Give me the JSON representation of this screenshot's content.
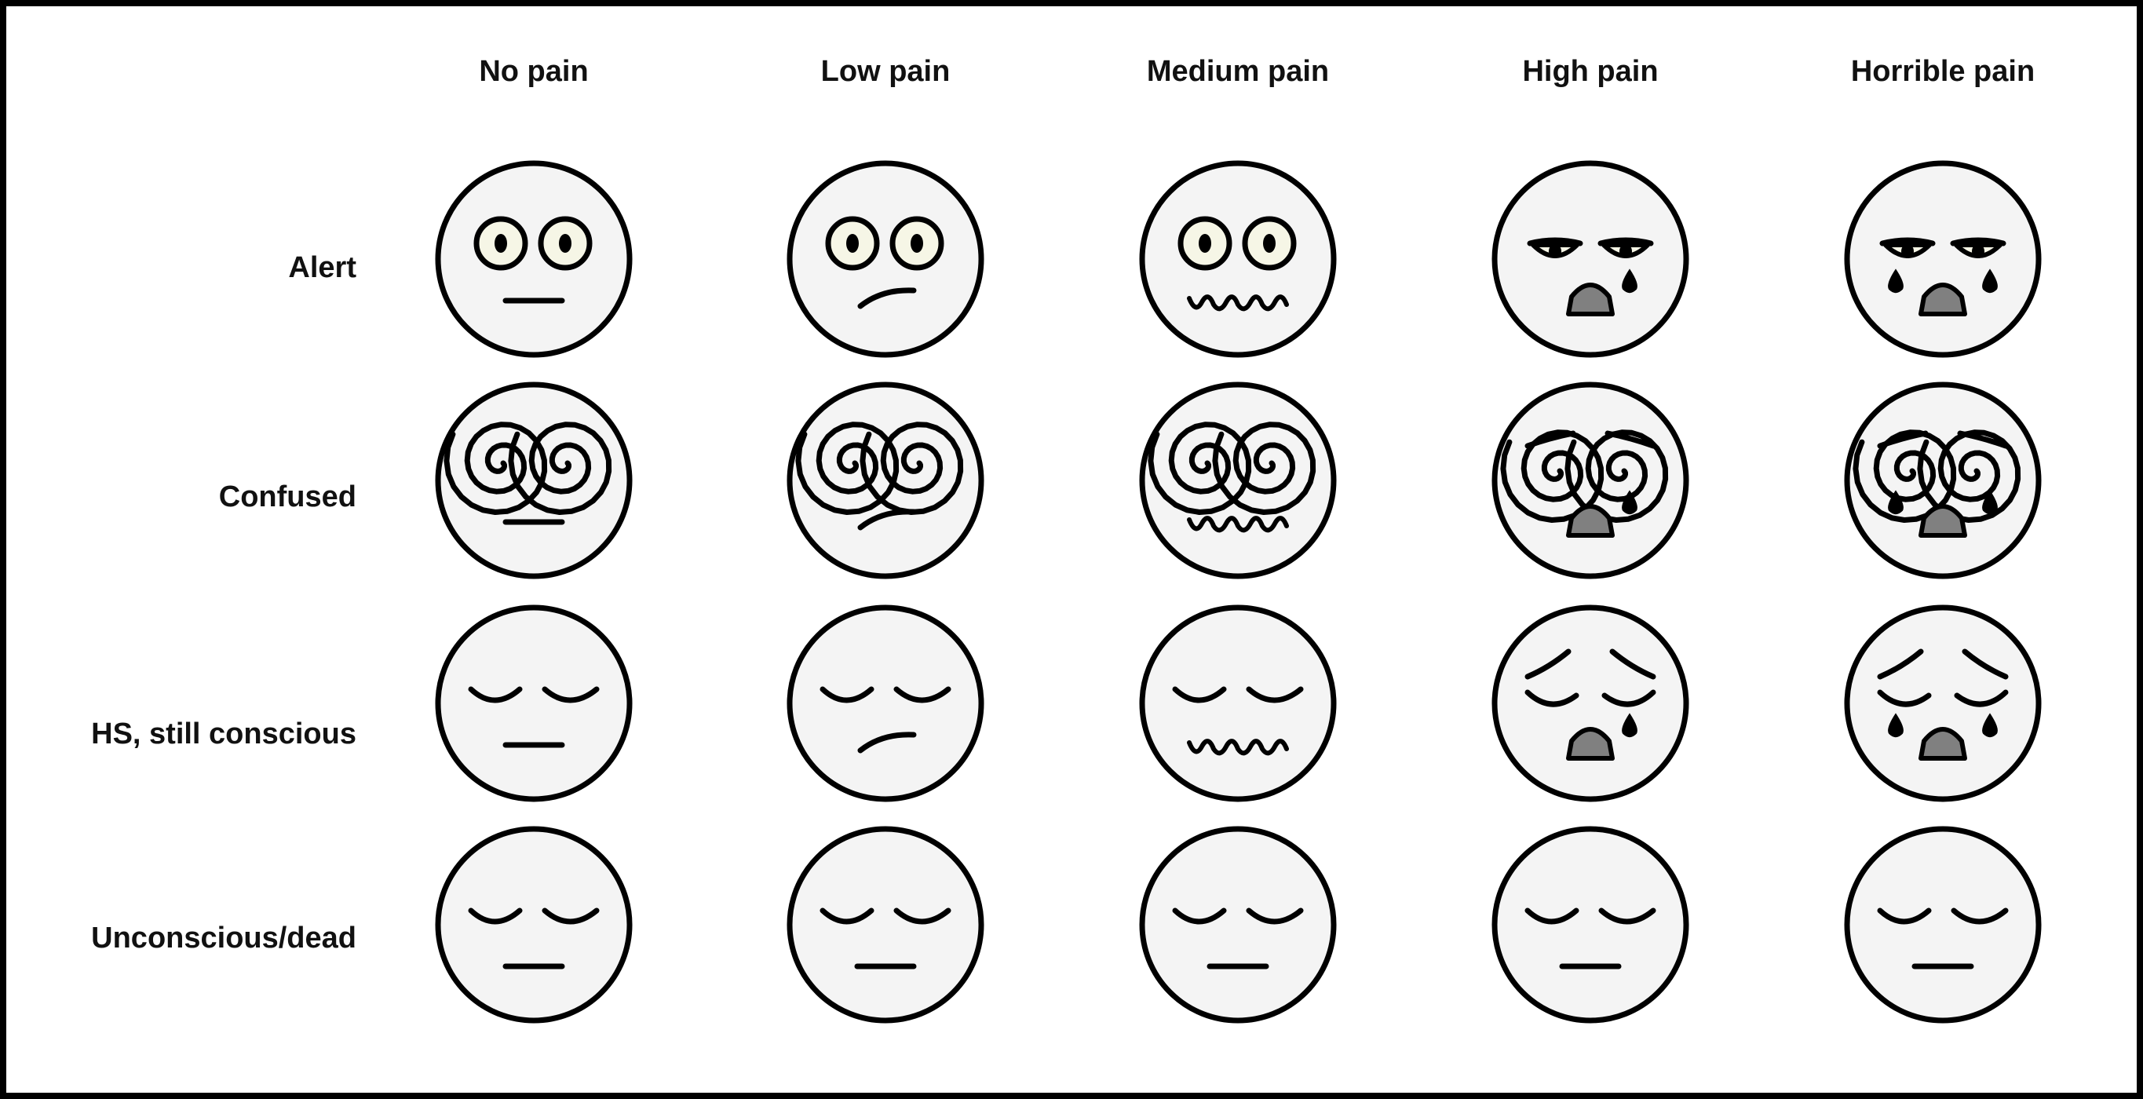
{
  "columns": [
    "No pain",
    "Low pain",
    "Medium pain",
    "High pain",
    "Horrible pain"
  ],
  "rows": [
    "Alert",
    "Confused",
    "HS, still conscious",
    "Unconscious/dead"
  ],
  "faces": [
    [
      "neutral-face-icon",
      "uneasy-face-icon",
      "wavy-mouth-face-icon",
      "crying-face-icon",
      "sobbing-face-icon"
    ],
    [
      "dizzy-neutral-face-icon",
      "dizzy-uneasy-face-icon",
      "dizzy-wavy-mouth-face-icon",
      "dizzy-crying-face-icon",
      "dizzy-sobbing-face-icon"
    ],
    [
      "sleepy-neutral-face-icon",
      "sleepy-uneasy-face-icon",
      "sleepy-wavy-mouth-face-icon",
      "sleepy-crying-face-icon",
      "sleepy-sobbing-face-icon"
    ],
    [
      "closed-eyes-face-icon",
      "closed-eyes-face-icon",
      "closed-eyes-face-icon",
      "closed-eyes-face-icon",
      "closed-eyes-face-icon"
    ]
  ],
  "colors": {
    "background": "#ffffff",
    "border": "#000000",
    "face_fill": "#f4f4f4",
    "eye_white": "#f6f6e6",
    "mouth_fill": "#808080",
    "ink": "#000000"
  }
}
